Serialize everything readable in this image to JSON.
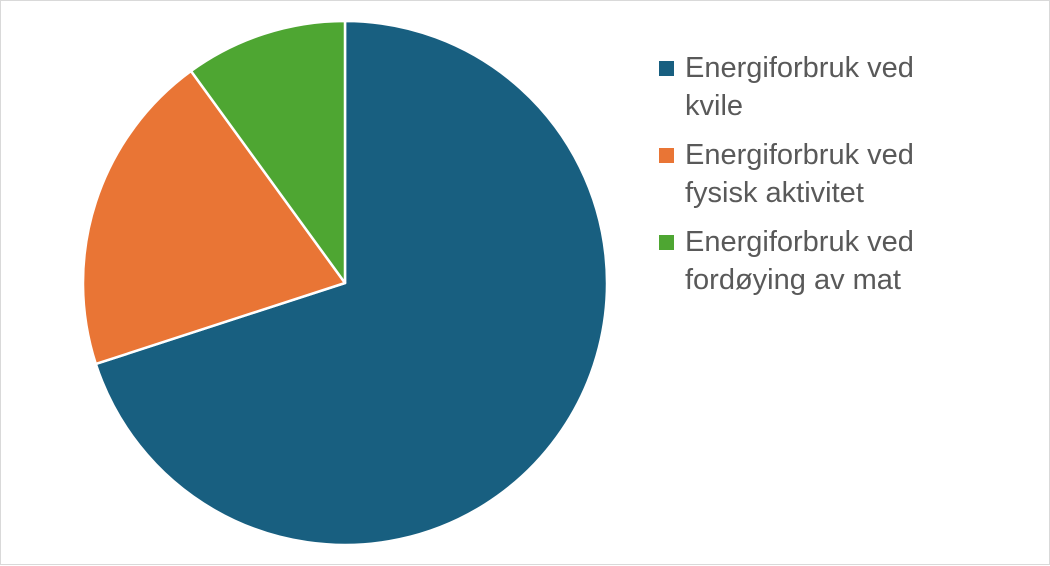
{
  "chart_data": {
    "type": "pie",
    "title": "",
    "legend_position": "right",
    "slices": [
      {
        "name": "Energiforbruk ved kvile",
        "value": 70,
        "color": "#185f80"
      },
      {
        "name": "Energiforbruk ved fysisk aktivitet",
        "value": 20,
        "color": "#e97535"
      },
      {
        "name": "Energiforbruk ved fordøying av mat",
        "value": 10,
        "color": "#4ea632"
      }
    ]
  }
}
